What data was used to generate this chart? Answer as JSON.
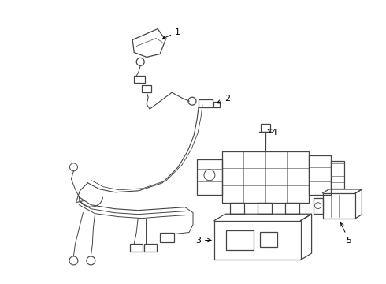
{
  "background_color": "#ffffff",
  "line_color": "#444444",
  "text_color": "#000000",
  "fig_width": 4.9,
  "fig_height": 3.6,
  "dpi": 100
}
